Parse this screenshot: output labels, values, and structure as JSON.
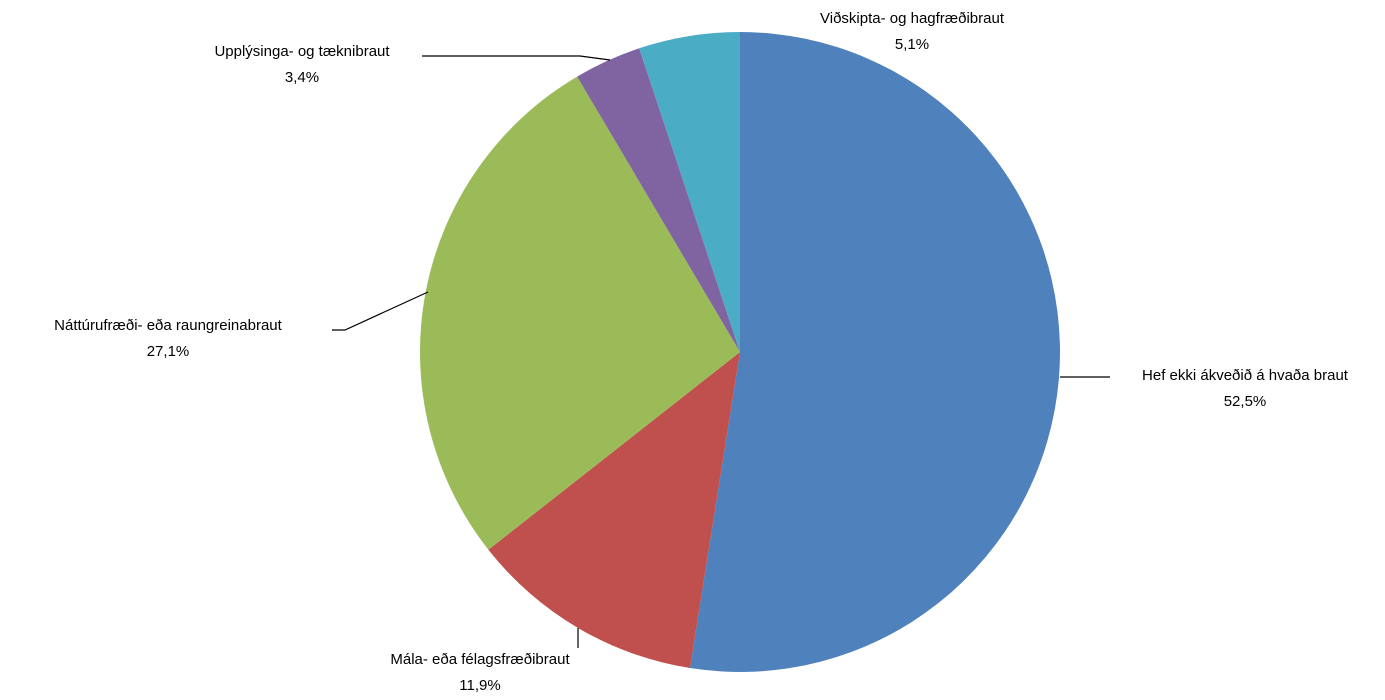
{
  "chart_data": {
    "type": "pie",
    "categories": [
      "Hef ekki ákveðið á hvaða braut",
      "Mála- eða félagsfræðibraut",
      "Náttúrufræði- eða raungreinabraut",
      "Upplýsinga- og tæknibraut",
      "Viðskipta- og hagfræðibraut"
    ],
    "values": [
      52.5,
      11.9,
      27.1,
      3.4,
      5.1
    ],
    "value_labels": [
      "52,5%",
      "11,9%",
      "27,1%",
      "3,4%",
      "5,1%"
    ],
    "colors": [
      "#4f81bd",
      "#c0504d",
      "#9bbb59",
      "#8064a2",
      "#4bacc6"
    ]
  }
}
